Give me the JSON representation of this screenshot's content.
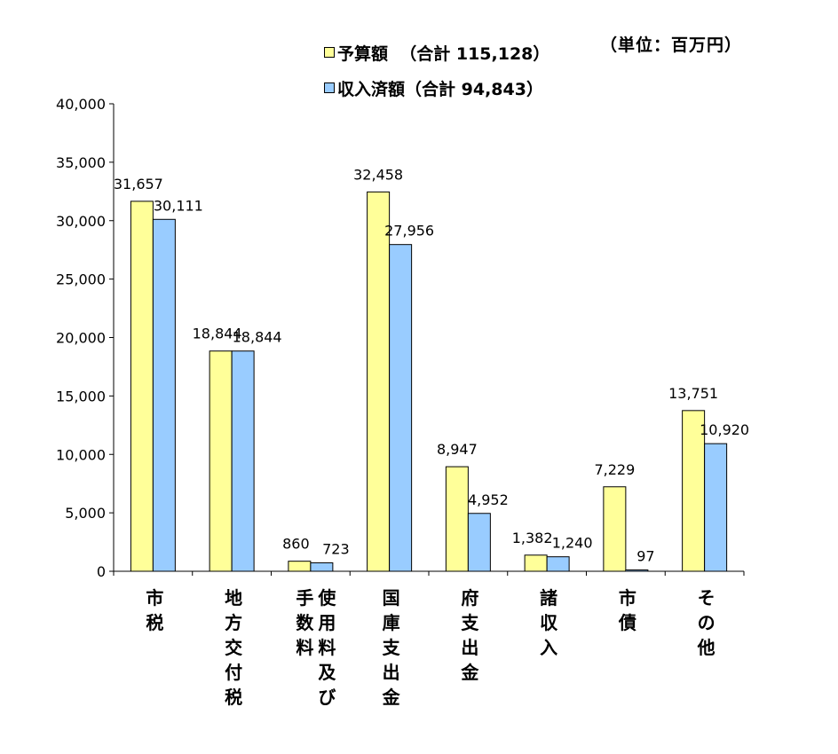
{
  "unit_label": "（単位：百万円）",
  "legend": {
    "budget": {
      "prefix": "予算額",
      "total": "（合計 115,128）"
    },
    "revenue": {
      "prefix": "収入済額",
      "total": "（合計 94,843）"
    }
  },
  "chart_data": {
    "type": "bar",
    "categories": [
      {
        "name": "市税",
        "columns": [
          "市税"
        ]
      },
      {
        "name": "地方交付税",
        "columns": [
          "地方交付税"
        ]
      },
      {
        "name": "使用料及び手数料",
        "columns": [
          "使用料及び",
          "手数料"
        ]
      },
      {
        "name": "国庫支出金",
        "columns": [
          "国庫支出金"
        ]
      },
      {
        "name": "府支出金",
        "columns": [
          "府支出金"
        ]
      },
      {
        "name": "諸収入",
        "columns": [
          "諸収入"
        ]
      },
      {
        "name": "市債",
        "columns": [
          "市債"
        ]
      },
      {
        "name": "その他",
        "columns": [
          "その他"
        ]
      }
    ],
    "series": [
      {
        "name": "予算額",
        "color": "#ffff99",
        "values": [
          31657,
          18844,
          860,
          32458,
          8947,
          1382,
          7229,
          13751
        ],
        "labels": [
          "31,657",
          "18,844",
          "860",
          "32,458",
          "8,947",
          "1,382",
          "7,229",
          "13,751"
        ]
      },
      {
        "name": "収入済額",
        "color": "#99ccff",
        "values": [
          30111,
          18844,
          723,
          27956,
          4952,
          1240,
          97,
          10920
        ],
        "labels": [
          "30,111",
          "18,844",
          "723",
          "27,956",
          "4,952",
          "1,240",
          "97",
          "10,920"
        ]
      }
    ],
    "ylim": [
      0,
      40000
    ],
    "yticks": [
      0,
      5000,
      10000,
      15000,
      20000,
      25000,
      30000,
      35000,
      40000
    ],
    "ytick_labels": [
      "0",
      "5,000",
      "10,000",
      "15,000",
      "20,000",
      "25,000",
      "30,000",
      "35,000",
      "40,000"
    ],
    "grid": false,
    "legend_position": "top-center"
  }
}
